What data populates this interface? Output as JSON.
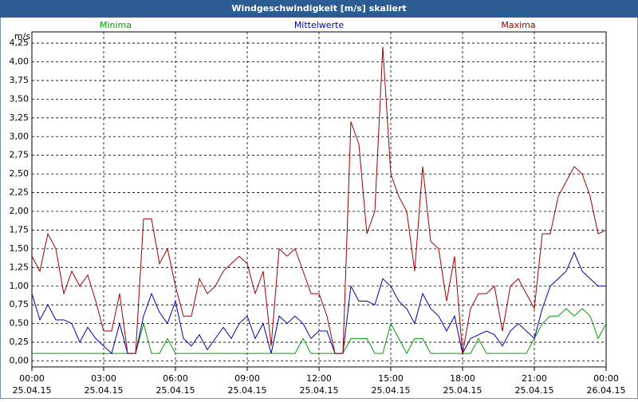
{
  "chart_data": {
    "type": "line",
    "title": "Windgeschwindigkeit [m/s] skaliert",
    "y_label": "m/s",
    "x": [
      0,
      20,
      40,
      60,
      80,
      100,
      120,
      140,
      160,
      180,
      200,
      220,
      240,
      260,
      280,
      300,
      320,
      340,
      360,
      380,
      400,
      420,
      440,
      460,
      480,
      500,
      520,
      540,
      560,
      580,
      600,
      620,
      640,
      660,
      680,
      700,
      720,
      740,
      760,
      780,
      800,
      820,
      840,
      860,
      880,
      900,
      920,
      940,
      960,
      980,
      1000,
      1020,
      1040,
      1060,
      1080,
      1100,
      1120,
      1140,
      1160,
      1180,
      1200,
      1220,
      1240,
      1260,
      1280,
      1300,
      1320,
      1340,
      1360,
      1380,
      1400,
      1420,
      1440
    ],
    "xlim": [
      0,
      1440
    ],
    "xticks": [
      {
        "value": 0,
        "label": "00:00"
      },
      {
        "value": 180,
        "label": "03:00"
      },
      {
        "value": 360,
        "label": "06:00"
      },
      {
        "value": 540,
        "label": "09:00"
      },
      {
        "value": 720,
        "label": "12:00"
      },
      {
        "value": 900,
        "label": "15:00"
      },
      {
        "value": 1080,
        "label": "18:00"
      },
      {
        "value": 1260,
        "label": "21:00"
      },
      {
        "value": 1440,
        "label": "00:00"
      }
    ],
    "x_tick_dates": [
      "25.04.15",
      "25.04.15",
      "25.04.15",
      "25.04.15",
      "25.04.15",
      "25.04.15",
      "25.04.15",
      "25.04.15",
      "26.04.15"
    ],
    "ylim": [
      -0.08,
      4.4
    ],
    "yticks": [
      {
        "value": 0,
        "label": "0,00"
      },
      {
        "value": 0.25,
        "label": "0,25"
      },
      {
        "value": 0.5,
        "label": "0,50"
      },
      {
        "value": 0.75,
        "label": "0,75"
      },
      {
        "value": 1,
        "label": "1,00"
      },
      {
        "value": 1.25,
        "label": "1,25"
      },
      {
        "value": 1.5,
        "label": "1,50"
      },
      {
        "value": 1.75,
        "label": "1,75"
      },
      {
        "value": 2,
        "label": "2,00"
      },
      {
        "value": 2.25,
        "label": "2,25"
      },
      {
        "value": 2.5,
        "label": "2,50"
      },
      {
        "value": 2.75,
        "label": "2,75"
      },
      {
        "value": 3,
        "label": "3,00"
      },
      {
        "value": 3.25,
        "label": "3,25"
      },
      {
        "value": 3.5,
        "label": "3,50"
      },
      {
        "value": 3.75,
        "label": "3,75"
      },
      {
        "value": 4,
        "label": "4,00"
      },
      {
        "value": 4.25,
        "label": "4,25"
      }
    ],
    "grid": true,
    "series": [
      {
        "name": "Minima",
        "color": "#00a000",
        "values": [
          0.1,
          0.1,
          0.1,
          0.1,
          0.1,
          0.1,
          0.1,
          0.1,
          0.1,
          0.1,
          0.1,
          0.1,
          0.1,
          0.1,
          0.5,
          0.1,
          0.1,
          0.3,
          0.1,
          0.1,
          0.1,
          0.1,
          0.1,
          0.1,
          0.1,
          0.1,
          0.1,
          0.1,
          0.1,
          0.1,
          0.1,
          0.1,
          0.1,
          0.1,
          0.3,
          0.1,
          0.1,
          0.1,
          0.1,
          0.1,
          0.3,
          0.3,
          0.3,
          0.1,
          0.1,
          0.5,
          0.3,
          0.1,
          0.3,
          0.3,
          0.1,
          0.1,
          0.1,
          0.1,
          0.1,
          0.1,
          0.3,
          0.1,
          0.1,
          0.1,
          0.1,
          0.1,
          0.1,
          0.3,
          0.5,
          0.6,
          0.6,
          0.7,
          0.6,
          0.7,
          0.6,
          0.3,
          0.5
        ]
      },
      {
        "name": "Mittelwerte",
        "color": "#0000b0",
        "values": [
          0.9,
          0.55,
          0.75,
          0.55,
          0.55,
          0.5,
          0.25,
          0.45,
          0.3,
          0.2,
          0.1,
          0.5,
          0.1,
          0.1,
          0.6,
          0.9,
          0.65,
          0.5,
          0.8,
          0.3,
          0.2,
          0.35,
          0.15,
          0.3,
          0.45,
          0.3,
          0.5,
          0.6,
          0.3,
          0.5,
          0.1,
          0.6,
          0.5,
          0.6,
          0.5,
          0.3,
          0.4,
          0.4,
          0.1,
          0.1,
          1.0,
          0.8,
          0.8,
          0.75,
          1.1,
          1.0,
          0.8,
          0.7,
          0.5,
          0.9,
          0.7,
          0.6,
          0.4,
          0.6,
          0.1,
          0.3,
          0.35,
          0.4,
          0.35,
          0.2,
          0.4,
          0.5,
          0.4,
          0.3,
          0.7,
          1.0,
          1.1,
          1.2,
          1.45,
          1.2,
          1.1,
          1.0,
          1.0
        ]
      },
      {
        "name": "Maxima",
        "color": "#a00000",
        "values": [
          1.4,
          1.2,
          1.7,
          1.5,
          0.9,
          1.2,
          1.0,
          1.15,
          0.8,
          0.4,
          0.4,
          0.9,
          0.1,
          0.1,
          1.9,
          1.9,
          1.3,
          1.5,
          1.0,
          0.6,
          0.6,
          1.1,
          0.9,
          1.0,
          1.2,
          1.3,
          1.4,
          1.3,
          0.9,
          1.2,
          0.2,
          1.5,
          1.4,
          1.5,
          1.2,
          0.9,
          0.9,
          0.6,
          0.1,
          0.1,
          3.2,
          2.9,
          1.7,
          2.0,
          4.2,
          2.5,
          2.2,
          2.0,
          1.2,
          2.6,
          1.6,
          1.5,
          0.8,
          1.4,
          0.1,
          0.7,
          0.9,
          0.9,
          1.0,
          0.4,
          1.0,
          1.1,
          0.9,
          0.7,
          1.7,
          1.7,
          2.2,
          2.4,
          2.6,
          2.5,
          2.2,
          1.7,
          1.75
        ]
      }
    ]
  }
}
